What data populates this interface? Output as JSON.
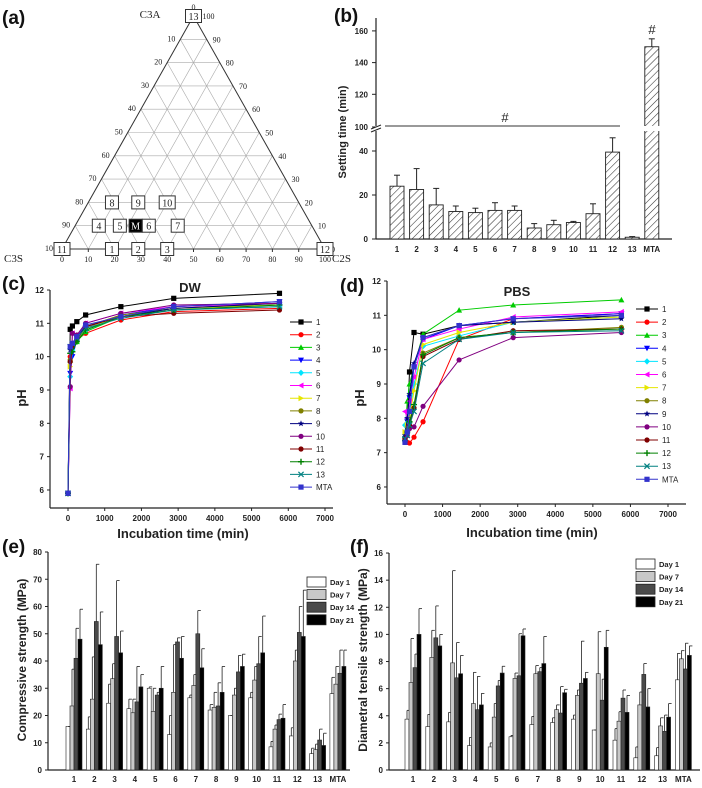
{
  "figure": {
    "panel_labels": [
      "(a)",
      "(b)",
      "(c)",
      "(d)",
      "(e)",
      "(f)"
    ]
  },
  "chart_data": [
    {
      "type": "scatter",
      "subtype": "ternary",
      "vertices": {
        "top": "C3A",
        "left": "C3S",
        "right": "C2S"
      },
      "ticks": [
        0,
        10,
        20,
        30,
        40,
        50,
        60,
        70,
        80,
        90,
        100
      ],
      "grid": true,
      "points": [
        {
          "label": "11",
          "C2S": 0,
          "C3A": 0
        },
        {
          "label": "1",
          "C2S": 19,
          "C3A": 0
        },
        {
          "label": "2",
          "C2S": 29,
          "C3A": 0
        },
        {
          "label": "3",
          "C2S": 40,
          "C3A": 0
        },
        {
          "label": "12",
          "C2S": 100,
          "C3A": 0
        },
        {
          "label": "4",
          "C2S": 9,
          "C3A": 10
        },
        {
          "label": "5",
          "C2S": 17,
          "C3A": 10
        },
        {
          "label": "M",
          "C2S": 23,
          "C3A": 10,
          "highlight": true
        },
        {
          "label": "6",
          "C2S": 28,
          "C3A": 10
        },
        {
          "label": "7",
          "C2S": 39,
          "C3A": 10
        },
        {
          "label": "8",
          "C2S": 9,
          "C3A": 20
        },
        {
          "label": "9",
          "C2S": 19,
          "C3A": 20
        },
        {
          "label": "10",
          "C2S": 30,
          "C3A": 20
        },
        {
          "label": "13",
          "C2S": 0,
          "C3A": 100
        }
      ]
    },
    {
      "type": "bar",
      "ylabel": "Setting time (min)",
      "categories": [
        "1",
        "2",
        "3",
        "4",
        "5",
        "6",
        "7",
        "8",
        "9",
        "10",
        "11",
        "12",
        "13",
        "MTA"
      ],
      "values": [
        24,
        22.5,
        15.5,
        12.5,
        12,
        13,
        13,
        5,
        6.5,
        7.5,
        11.5,
        39.5,
        0.8,
        150
      ],
      "errors": [
        5,
        9.5,
        7.5,
        2.5,
        2,
        3.5,
        2,
        2,
        2,
        0.5,
        4.5,
        6.5,
        0.3,
        5
      ],
      "yticks": [
        0,
        20,
        40,
        100,
        120,
        140,
        160
      ],
      "axis_break": [
        45,
        100
      ],
      "ylim": [
        0,
        165
      ],
      "annotations": {
        "group_mark": "#",
        "mta_mark": "#"
      }
    },
    {
      "type": "line",
      "title": "DW",
      "xlabel": "Incubation time (min)",
      "ylabel": "pH",
      "xlim": [
        -500,
        7250
      ],
      "ylim": [
        5.45,
        12
      ],
      "xticks": [
        0,
        1000,
        2000,
        3000,
        4000,
        5000,
        6000,
        7000
      ],
      "yticks": [
        6,
        7,
        8,
        9,
        10,
        11,
        12
      ],
      "legend": "right",
      "x": [
        0,
        60,
        120,
        240,
        480,
        1440,
        2880,
        5760
      ],
      "series": [
        {
          "name": "1",
          "color": "#000000",
          "marker": "square",
          "values": [
            5.9,
            10.82,
            10.92,
            11.05,
            11.25,
            11.5,
            11.75,
            11.9
          ]
        },
        {
          "name": "2",
          "color": "#ff0000",
          "marker": "circle",
          "values": [
            5.9,
            10.0,
            10.3,
            10.5,
            10.7,
            11.1,
            11.35,
            11.45
          ]
        },
        {
          "name": "3",
          "color": "#00cc00",
          "marker": "triangle",
          "values": [
            5.9,
            9.9,
            10.2,
            10.45,
            10.75,
            11.2,
            11.45,
            11.55
          ]
        },
        {
          "name": "4",
          "color": "#0000ff",
          "marker": "triangle-down",
          "values": [
            5.9,
            9.5,
            10.0,
            10.5,
            10.85,
            11.25,
            11.5,
            11.65
          ]
        },
        {
          "name": "5",
          "color": "#00e5ff",
          "marker": "diamond",
          "values": [
            5.9,
            9.4,
            10.2,
            10.55,
            10.8,
            11.2,
            11.4,
            11.5
          ]
        },
        {
          "name": "6",
          "color": "#ff00ff",
          "marker": "triangle-left",
          "values": [
            5.9,
            9.05,
            10.7,
            10.6,
            11.0,
            11.3,
            11.5,
            11.6
          ]
        },
        {
          "name": "7",
          "color": "#e6e600",
          "marker": "triangle-right",
          "values": [
            5.9,
            9.7,
            10.3,
            10.5,
            10.85,
            11.2,
            11.45,
            11.55
          ]
        },
        {
          "name": "8",
          "color": "#808000",
          "marker": "circle",
          "values": [
            5.9,
            9.9,
            10.3,
            10.5,
            10.9,
            11.25,
            11.45,
            11.6
          ]
        },
        {
          "name": "9",
          "color": "#000080",
          "marker": "star",
          "values": [
            5.9,
            10.2,
            10.4,
            10.6,
            10.9,
            11.2,
            11.45,
            11.6
          ]
        },
        {
          "name": "10",
          "color": "#800080",
          "marker": "circle",
          "values": [
            5.9,
            9.1,
            10.7,
            10.65,
            11.0,
            11.3,
            11.55,
            11.6
          ]
        },
        {
          "name": "11",
          "color": "#800000",
          "marker": "circle",
          "values": [
            5.9,
            9.85,
            10.3,
            10.5,
            10.9,
            11.2,
            11.3,
            11.4
          ]
        },
        {
          "name": "12",
          "color": "#008000",
          "marker": "plus",
          "values": [
            5.9,
            10.1,
            10.15,
            10.45,
            10.8,
            11.2,
            11.4,
            11.55
          ]
        },
        {
          "name": "13",
          "color": "#008080",
          "marker": "x",
          "values": [
            5.9,
            10.3,
            10.4,
            10.55,
            10.85,
            11.15,
            11.4,
            11.5
          ]
        },
        {
          "name": "MTA",
          "color": "#3333cc",
          "marker": "square",
          "values": [
            5.9,
            10.3,
            10.4,
            10.6,
            10.95,
            11.2,
            11.5,
            11.65
          ]
        }
      ]
    },
    {
      "type": "line",
      "title": "PBS",
      "xlabel": "Incubation time (min)",
      "ylabel": "pH",
      "xlim": [
        -500,
        7450
      ],
      "ylim": [
        5.5,
        12
      ],
      "xticks": [
        0,
        1000,
        2000,
        3000,
        4000,
        5000,
        6000,
        7000
      ],
      "yticks": [
        6,
        7,
        8,
        9,
        10,
        11,
        12
      ],
      "legend": "right",
      "x": [
        0,
        60,
        120,
        240,
        480,
        1440,
        2880,
        5760
      ],
      "series": [
        {
          "name": "1",
          "color": "#000000",
          "marker": "square",
          "values": [
            7.4,
            7.8,
            9.35,
            10.5,
            10.45,
            10.7,
            10.8,
            11.0
          ]
        },
        {
          "name": "2",
          "color": "#ff0000",
          "marker": "circle",
          "values": [
            7.4,
            7.3,
            7.28,
            7.45,
            7.9,
            10.3,
            10.9,
            11.05
          ]
        },
        {
          "name": "3",
          "color": "#00cc00",
          "marker": "triangle",
          "values": [
            7.5,
            8.5,
            9.0,
            9.5,
            10.45,
            11.15,
            11.3,
            11.45
          ]
        },
        {
          "name": "4",
          "color": "#0000ff",
          "marker": "triangle-down",
          "values": [
            7.4,
            7.9,
            8.6,
            9.5,
            10.3,
            10.7,
            10.9,
            11.05
          ]
        },
        {
          "name": "5",
          "color": "#00e5ff",
          "marker": "diamond",
          "values": [
            7.8,
            8.0,
            8.2,
            9.0,
            10.1,
            10.4,
            10.8,
            10.95
          ]
        },
        {
          "name": "6",
          "color": "#ff00ff",
          "marker": "triangle-left",
          "values": [
            8.2,
            8.0,
            8.5,
            9.2,
            10.3,
            10.6,
            10.95,
            11.1
          ]
        },
        {
          "name": "7",
          "color": "#e6e600",
          "marker": "triangle-right",
          "values": [
            7.6,
            7.8,
            8.0,
            8.8,
            10.15,
            10.5,
            10.8,
            10.95
          ]
        },
        {
          "name": "8",
          "color": "#808000",
          "marker": "circle",
          "values": [
            7.4,
            7.6,
            7.9,
            8.3,
            9.9,
            10.35,
            10.5,
            10.65
          ]
        },
        {
          "name": "9",
          "color": "#000080",
          "marker": "star",
          "values": [
            7.5,
            8.0,
            8.7,
            9.6,
            10.35,
            10.7,
            10.8,
            10.9
          ]
        },
        {
          "name": "10",
          "color": "#800080",
          "marker": "circle",
          "values": [
            7.3,
            7.5,
            7.7,
            7.75,
            8.35,
            9.7,
            10.35,
            10.5
          ]
        },
        {
          "name": "11",
          "color": "#800000",
          "marker": "circle",
          "values": [
            7.4,
            7.6,
            7.8,
            8.3,
            9.8,
            10.3,
            10.55,
            10.6
          ]
        },
        {
          "name": "12",
          "color": "#008000",
          "marker": "plus",
          "values": [
            7.35,
            7.6,
            7.9,
            8.4,
            9.85,
            10.35,
            10.5,
            10.6
          ]
        },
        {
          "name": "13",
          "color": "#008080",
          "marker": "x",
          "values": [
            7.4,
            7.5,
            7.8,
            8.2,
            9.6,
            10.3,
            10.5,
            10.55
          ]
        },
        {
          "name": "MTA",
          "color": "#3333cc",
          "marker": "square",
          "values": [
            7.3,
            7.6,
            8.2,
            9.5,
            10.35,
            10.7,
            10.9,
            11.0
          ]
        }
      ]
    },
    {
      "type": "bar",
      "ylabel": "Compressive strength (MPa)",
      "ylim": [
        0,
        80
      ],
      "yticks": [
        0,
        10,
        20,
        30,
        40,
        50,
        60,
        70,
        80
      ],
      "legend": "top-right",
      "categories": [
        "1",
        "2",
        "3",
        "4",
        "5",
        "6",
        "7",
        "8",
        "9",
        "10",
        "11",
        "12",
        "13",
        "MTA"
      ],
      "series": [
        {
          "name": "Day 1",
          "color": "#ffffff",
          "values": [
            16,
            15,
            24.5,
            22.5,
            30,
            13,
            26.5,
            22,
            20,
            26.5,
            8.5,
            12.5,
            6,
            28
          ],
          "error_top": [
            16,
            19.5,
            31.5,
            26,
            30.5,
            20,
            27.5,
            24,
            20,
            28.5,
            10.5,
            15.5,
            8,
            34
          ]
        },
        {
          "name": "Day 7",
          "color": "#c8c8c8",
          "values": [
            23.5,
            26,
            33.5,
            21,
            21.5,
            28.5,
            31,
            23,
            27.5,
            33,
            15,
            40,
            7.5,
            31.5
          ],
          "error_top": [
            37,
            41.5,
            39,
            26,
            30,
            46,
            35,
            28.5,
            30,
            38,
            16.5,
            44,
            9.5,
            38
          ]
        },
        {
          "name": "Day 14",
          "color": "#4a4a4a",
          "values": [
            41,
            54.5,
            49,
            25,
            27.5,
            47,
            50,
            23.5,
            36,
            39,
            18.5,
            50.5,
            11,
            35.5
          ],
          "error_top": [
            52,
            75.5,
            69.5,
            38,
            28.5,
            48.5,
            58.5,
            32,
            42,
            49,
            20.5,
            60,
            15,
            44
          ]
        },
        {
          "name": "Day 21",
          "color": "#000000",
          "values": [
            48,
            46,
            43,
            30.5,
            30,
            41,
            37.5,
            28.5,
            38,
            43,
            19,
            49,
            9,
            38
          ],
          "error_top": [
            59,
            58,
            51,
            35,
            38,
            49,
            44.5,
            38,
            42.5,
            56.5,
            24,
            66,
            13.5,
            44
          ]
        }
      ]
    },
    {
      "type": "bar",
      "ylabel": "Diametral tensile strength (MPa)",
      "ylim": [
        0,
        16
      ],
      "yticks": [
        0,
        2,
        4,
        6,
        8,
        10,
        12,
        14,
        16
      ],
      "legend": "top-right",
      "categories": [
        "1",
        "2",
        "3",
        "4",
        "5",
        "6",
        "7",
        "8",
        "9",
        "10",
        "11",
        "12",
        "13",
        "MTA"
      ],
      "series": [
        {
          "name": "Day 1",
          "color": "#ffffff",
          "values": [
            3.75,
            3.2,
            3.55,
            1.8,
            1.7,
            2.45,
            3.35,
            3.5,
            3.75,
            2.95,
            2.2,
            0.9,
            1.05,
            6.65
          ],
          "error_top": [
            4.4,
            4.1,
            4.25,
            2.4,
            2.0,
            2.55,
            3.95,
            3.85,
            4.05,
            2.95,
            3.05,
            1.7,
            1.65,
            8.6
          ]
        },
        {
          "name": "Day 7",
          "color": "#c8c8c8",
          "values": [
            6.45,
            8.3,
            7.9,
            4.9,
            3.9,
            6.75,
            7.1,
            4.45,
            5.5,
            7.1,
            3.6,
            4.8,
            3.25,
            8.2
          ],
          "error_top": [
            9.7,
            10.3,
            14.7,
            7.2,
            4.9,
            7.15,
            7.7,
            4.8,
            5.9,
            10.2,
            4.3,
            5.75,
            3.85,
            8.8
          ]
        },
        {
          "name": "Day 14",
          "color": "#4a4a4a",
          "values": [
            7.55,
            9.75,
            6.8,
            4.45,
            6.2,
            6.95,
            7.25,
            4.2,
            6.4,
            5.15,
            5.3,
            7.05,
            2.85,
            7.45
          ],
          "error_top": [
            8.55,
            12.1,
            9.4,
            6.9,
            6.6,
            10.05,
            7.55,
            6.15,
            9.5,
            6.7,
            5.9,
            7.85,
            4.05,
            9.35
          ]
        },
        {
          "name": "Day 21",
          "color": "#000000",
          "values": [
            10,
            9.15,
            7.1,
            4.8,
            7.15,
            9.9,
            7.85,
            5.7,
            6.75,
            9.05,
            4.25,
            4.65,
            3.9,
            8.45
          ],
          "error_top": [
            11.9,
            10,
            8.45,
            5.65,
            7.65,
            10.4,
            9.85,
            5.95,
            7.2,
            10.3,
            5.5,
            6.0,
            4.9,
            9.15
          ]
        }
      ]
    }
  ]
}
